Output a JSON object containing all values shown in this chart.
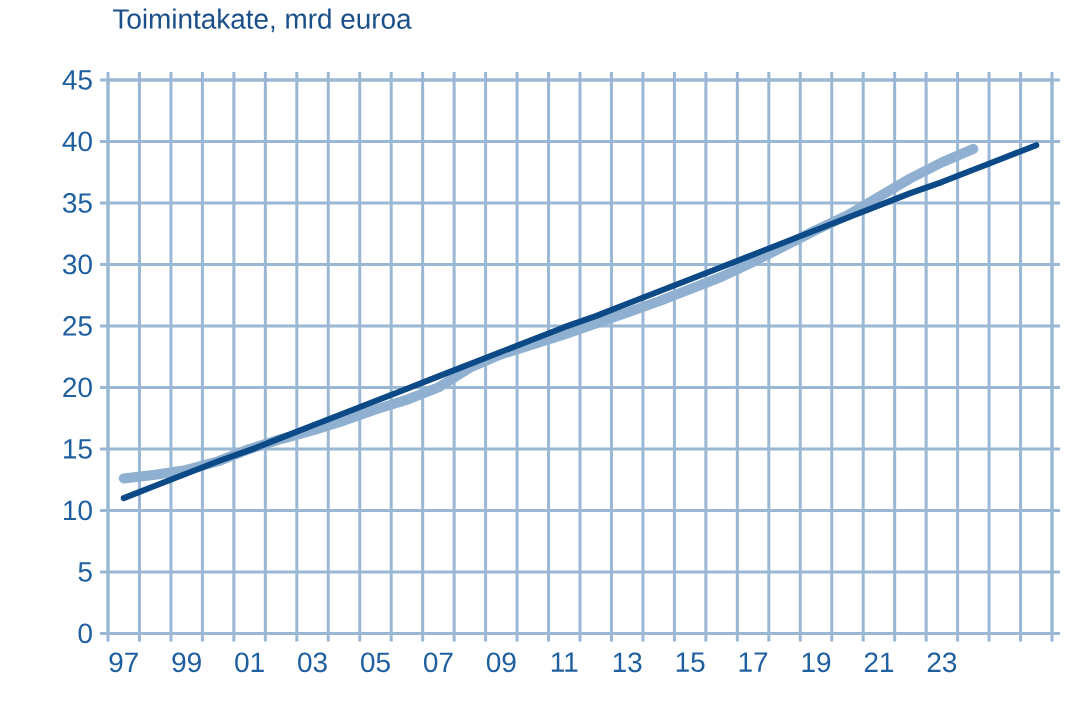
{
  "chart_data": {
    "type": "line",
    "title": "Toimintakate, mrd euroa",
    "categories": [
      "97",
      null,
      "99",
      null,
      "01",
      null,
      "03",
      null,
      "05",
      null,
      "07",
      null,
      "09",
      null,
      "11",
      null,
      "13",
      null,
      "15",
      null,
      "17",
      null,
      "19",
      null,
      "21",
      null,
      "23",
      null,
      null,
      null
    ],
    "series": [
      {
        "color": "#8fb0d0",
        "values": [
          12.6,
          12.9,
          13.3,
          14.0,
          15.0,
          15.8,
          16.5,
          17.3,
          18.2,
          19.0,
          20.0,
          21.6,
          22.7,
          23.5,
          24.3,
          25.2,
          26.1,
          27.0,
          28.0,
          29.0,
          30.2,
          31.5,
          32.8,
          34.0,
          35.5,
          37.0,
          38.3,
          39.4,
          null,
          null
        ]
      },
      {
        "color": "#0b4a87",
        "values": [
          11.0,
          12.0,
          13.0,
          14.0,
          14.9,
          15.9,
          16.9,
          17.9,
          18.9,
          19.9,
          20.9,
          21.9,
          22.9,
          23.9,
          24.9,
          25.8,
          26.8,
          27.8,
          28.8,
          29.8,
          30.8,
          31.8,
          32.8,
          33.8,
          34.8,
          35.8,
          36.7,
          37.7,
          38.7,
          39.7
        ]
      }
    ],
    "ylim": [
      0,
      45
    ],
    "yticks": [
      0,
      5,
      10,
      15,
      20,
      25,
      30,
      35,
      40,
      45
    ],
    "grid": true
  }
}
